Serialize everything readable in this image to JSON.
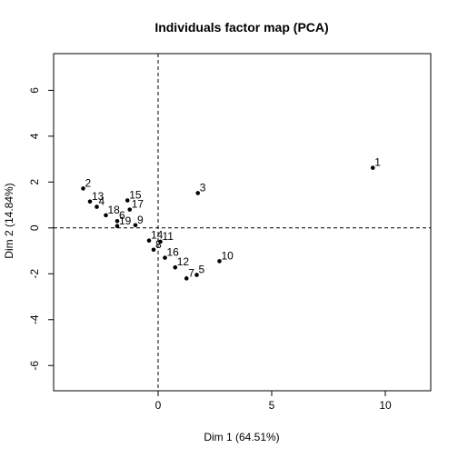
{
  "chart_data": {
    "type": "scatter",
    "title": "Individuals factor map (PCA)",
    "xlabel": "Dim 1 (64.51%)",
    "ylabel": "Dim 2 (14.84%)",
    "xlim": [
      -4.6,
      12.0
    ],
    "ylim": [
      -7.1,
      7.6
    ],
    "xticks": [
      0,
      5,
      10
    ],
    "yticks": [
      -6,
      -4,
      -2,
      0,
      2,
      4,
      6
    ],
    "reference_lines": {
      "x": 0,
      "y": 0,
      "style": "dashed"
    },
    "grid": false,
    "legend": "none",
    "points": [
      {
        "label": "1",
        "x": 9.45,
        "y": 2.62
      },
      {
        "label": "2",
        "x": -3.3,
        "y": 1.72
      },
      {
        "label": "3",
        "x": 1.75,
        "y": 1.52
      },
      {
        "label": "4",
        "x": -2.7,
        "y": 0.92
      },
      {
        "label": "5",
        "x": 1.7,
        "y": -2.05
      },
      {
        "label": "6",
        "x": -1.8,
        "y": 0.3
      },
      {
        "label": "7",
        "x": 1.25,
        "y": -2.2
      },
      {
        "label": "8",
        "x": -0.2,
        "y": -0.95
      },
      {
        "label": "9",
        "x": -1.0,
        "y": 0.12
      },
      {
        "label": "10",
        "x": 2.7,
        "y": -1.45
      },
      {
        "label": "11",
        "x": 0.1,
        "y": -0.6
      },
      {
        "label": "12",
        "x": 0.75,
        "y": -1.72
      },
      {
        "label": "13",
        "x": -3.0,
        "y": 1.15
      },
      {
        "label": "14",
        "x": -0.4,
        "y": -0.55
      },
      {
        "label": "15",
        "x": -1.35,
        "y": 1.2
      },
      {
        "label": "16",
        "x": 0.3,
        "y": -1.3
      },
      {
        "label": "17",
        "x": -1.25,
        "y": 0.8
      },
      {
        "label": "18",
        "x": -2.3,
        "y": 0.55
      },
      {
        "label": "19",
        "x": -1.8,
        "y": 0.08
      }
    ]
  }
}
